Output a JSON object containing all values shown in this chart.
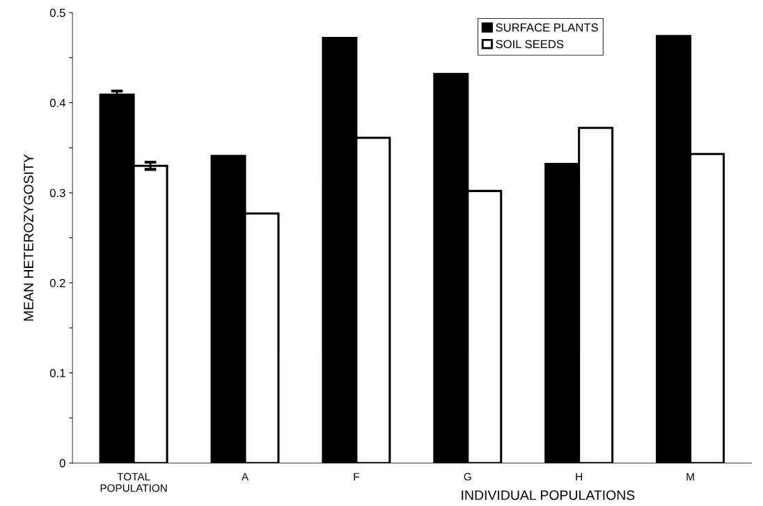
{
  "chart_data": {
    "type": "bar",
    "xlabel": "INDIVIDUAL POPULATIONS",
    "ylabel": "MEAN HETEROZYGOSITY",
    "categories": [
      "TOTAL\nPOPULATION",
      "A",
      "F",
      "G",
      "H",
      "M"
    ],
    "series": [
      {
        "name": "SURFACE PLANTS",
        "color": "#000000",
        "values": [
          0.409,
          0.341,
          0.472,
          0.432,
          0.332,
          0.474
        ],
        "errors": [
          0.004,
          null,
          null,
          null,
          null,
          null
        ]
      },
      {
        "name": "SOIL SEEDS",
        "color": "#ffffff",
        "values": [
          0.33,
          0.277,
          0.361,
          0.302,
          0.372,
          0.343
        ],
        "errors": [
          0.004,
          null,
          null,
          null,
          null,
          null
        ]
      }
    ],
    "ylim": [
      0,
      0.5
    ],
    "yticks": [
      0,
      {
        "value": 0.05,
        "label": null
      },
      0.1,
      {
        "value": 0.15,
        "label": null
      },
      0.2,
      {
        "value": 0.25,
        "label": null
      },
      0.3,
      {
        "value": 0.35,
        "label": null
      },
      0.4,
      {
        "value": 0.45,
        "label": null
      },
      0.5
    ],
    "legend": "top right",
    "grid": false
  }
}
